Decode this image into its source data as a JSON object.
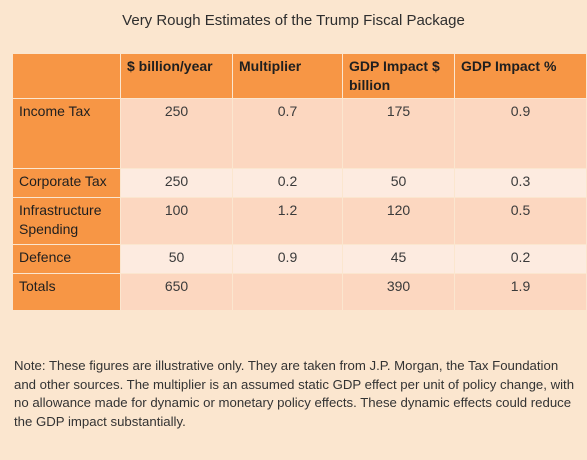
{
  "title": "Very Rough Estimates of the Trump Fiscal Package",
  "table": {
    "headers": [
      "",
      "$ billion/year",
      "Multiplier",
      "GDP Impact $ billion",
      "GDP Impact %"
    ],
    "rows": [
      {
        "label": "Income Tax",
        "billion": "250",
        "multiplier": "0.7",
        "gdp_billion": "175",
        "gdp_pct": "0.9"
      },
      {
        "label": "Corporate Tax",
        "billion": "250",
        "multiplier": "0.2",
        "gdp_billion": "50",
        "gdp_pct": "0.3"
      },
      {
        "label": "Infrastructure Spending",
        "billion": "100",
        "multiplier": "1.2",
        "gdp_billion": "120",
        "gdp_pct": "0.5"
      },
      {
        "label": "Defence",
        "billion": "50",
        "multiplier": "0.9",
        "gdp_billion": "45",
        "gdp_pct": "0.2"
      },
      {
        "label": "Totals",
        "billion": "650",
        "multiplier": "",
        "gdp_billion": "390",
        "gdp_pct": "1.9"
      }
    ]
  },
  "note": "Note: These figures are illustrative only. They are taken from J.P. Morgan, the Tax Foundation and other sources. The multiplier is an assumed static GDP effect per unit of policy change, with no allowance made for dynamic or monetary policy effects. These dynamic effects could reduce the GDP impact substantially."
}
